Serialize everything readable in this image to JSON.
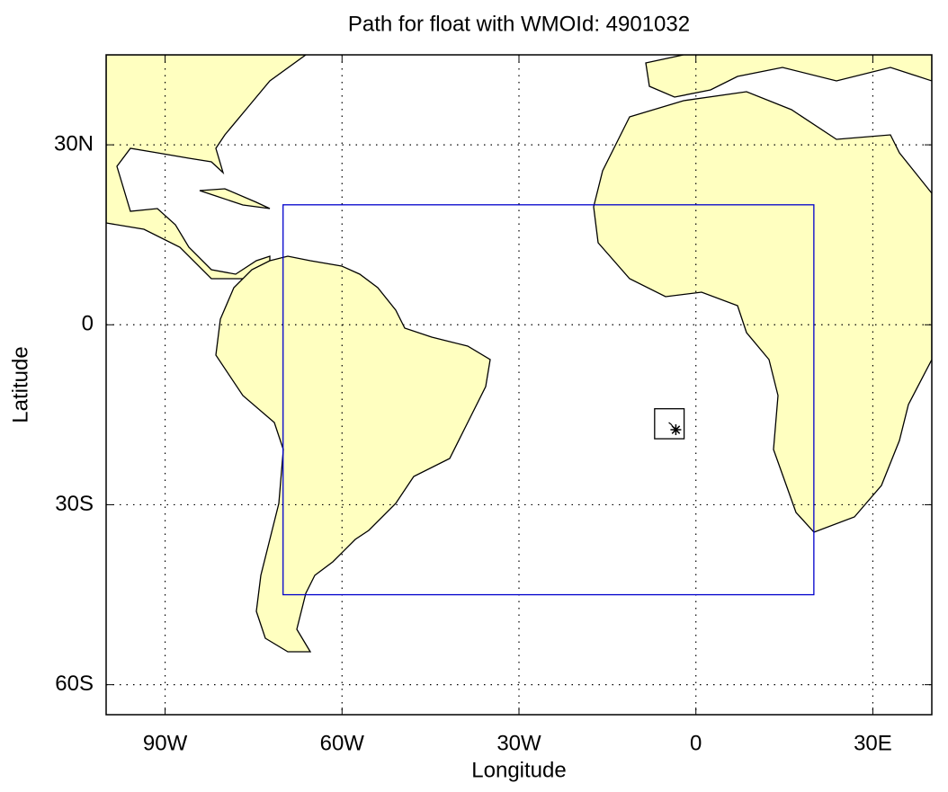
{
  "map": {
    "title": "Path for float with WMOId: 4901032",
    "xlabel": "Longitude",
    "ylabel": "Latitude",
    "xlim": [
      -100,
      40
    ],
    "ylim": [
      -65,
      45
    ],
    "xticks": [
      {
        "value": -90,
        "label": "90W"
      },
      {
        "value": -60,
        "label": "60W"
      },
      {
        "value": -30,
        "label": "30W"
      },
      0,
      {
        "value": 30,
        "label": "30E"
      }
    ],
    "yticks": [
      {
        "value": 30,
        "label": "30N"
      },
      0,
      {
        "value": -30,
        "label": "30S"
      },
      {
        "value": -60,
        "label": "60S"
      }
    ],
    "grid": true,
    "regions": [
      {
        "lon": [
          -70,
          20
        ],
        "lat": [
          -45,
          20
        ],
        "color": "#0000cc"
      },
      {
        "lon": [
          -7,
          -2
        ],
        "lat": [
          -19,
          -14
        ],
        "color": "#000000"
      }
    ],
    "path": {
      "lon": [
        -4.6,
        -4.2,
        -3.9,
        -3.6,
        -3.4
      ],
      "lat": [
        -16.3,
        -16.6,
        -17.0,
        -17.2,
        -17.5
      ],
      "color": "#000000"
    }
  }
}
